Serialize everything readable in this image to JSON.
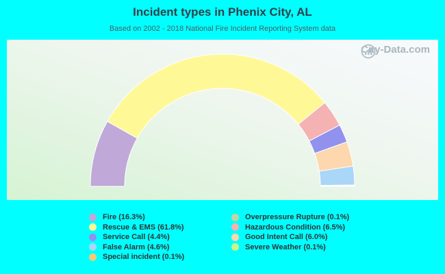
{
  "title": "Incident types in Phenix City, AL",
  "subtitle": "Based on 2002 - 2018 National Fire Incident Reporting System data",
  "watermark": "City-Data.com",
  "chart_data": {
    "type": "pie",
    "variant": "half-donut",
    "title": "Incident types in Phenix City, AL",
    "slices": [
      {
        "name": "Fire",
        "label": "Fire (16.3%)",
        "value": 16.3,
        "color": "#c0a8d8"
      },
      {
        "name": "Rescue & EMS",
        "label": "Rescue & EMS (61.8%)",
        "value": 61.8,
        "color": "#fff897"
      },
      {
        "name": "Hazardous Condition",
        "label": "Hazardous Condition (6.5%)",
        "value": 6.5,
        "color": "#f5b2b2"
      },
      {
        "name": "Service Call",
        "label": "Service Call (4.4%)",
        "value": 4.4,
        "color": "#9191ee"
      },
      {
        "name": "Good Intent Call",
        "label": "Good Intent Call (6.0%)",
        "value": 6.0,
        "color": "#fdd7ad"
      },
      {
        "name": "False Alarm",
        "label": "False Alarm (4.6%)",
        "value": 4.6,
        "color": "#aad6f7"
      },
      {
        "name": "Special incident",
        "label": "Special incident (0.1%)",
        "value": 0.1,
        "color": "#f4c876"
      },
      {
        "name": "Overpressure Rupture",
        "label": "Overpressure Rupture (0.1%)",
        "value": 0.1,
        "color": "#c3d4a2"
      },
      {
        "name": "Severe Weather",
        "label": "Severe Weather (0.1%)",
        "value": 0.1,
        "color": "#c9f58a"
      }
    ],
    "legend": {
      "placement": "bottom",
      "columns": [
        [
          {
            "label": "Fire (16.3%)",
            "color": "#c0a8d8"
          },
          {
            "label": "Rescue & EMS (61.8%)",
            "color": "#fff897"
          },
          {
            "label": "Service Call (4.4%)",
            "color": "#9191ee"
          },
          {
            "label": "False Alarm (4.6%)",
            "color": "#aad6f7"
          },
          {
            "label": "Special incident (0.1%)",
            "color": "#f4c876"
          }
        ],
        [
          {
            "label": "Overpressure Rupture (0.1%)",
            "color": "#c3d4a2"
          },
          {
            "label": "Hazardous Condition (6.5%)",
            "color": "#f5b2b2"
          },
          {
            "label": "Good Intent Call (6.0%)",
            "color": "#fdd7ad"
          },
          {
            "label": "Severe Weather (0.1%)",
            "color": "#c9f58a"
          }
        ]
      ]
    }
  }
}
